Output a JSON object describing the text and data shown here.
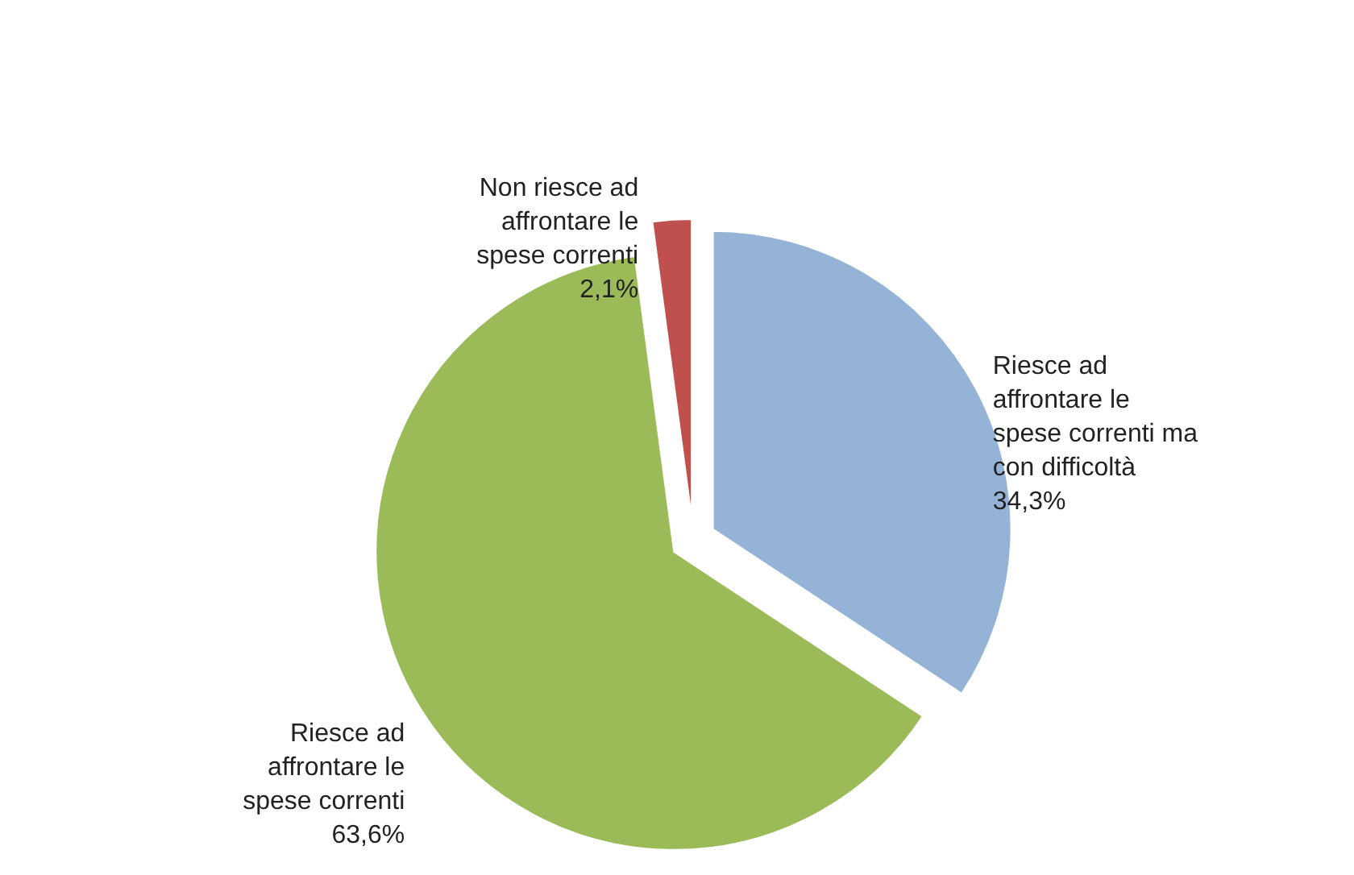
{
  "chart_data": {
    "type": "pie",
    "categories": [
      "Riesce ad affrontare le spese correnti ma con difficoltà",
      "Riesce ad affrontare le spese correnti",
      "Non riesce ad affrontare le spese correnti"
    ],
    "values": [
      34.3,
      63.6,
      2.1
    ],
    "value_labels": [
      "34,3%",
      "63,6%",
      "2,1%"
    ],
    "colors": [
      "#95b3d7",
      "#9bbb59",
      "#c0504d"
    ]
  }
}
